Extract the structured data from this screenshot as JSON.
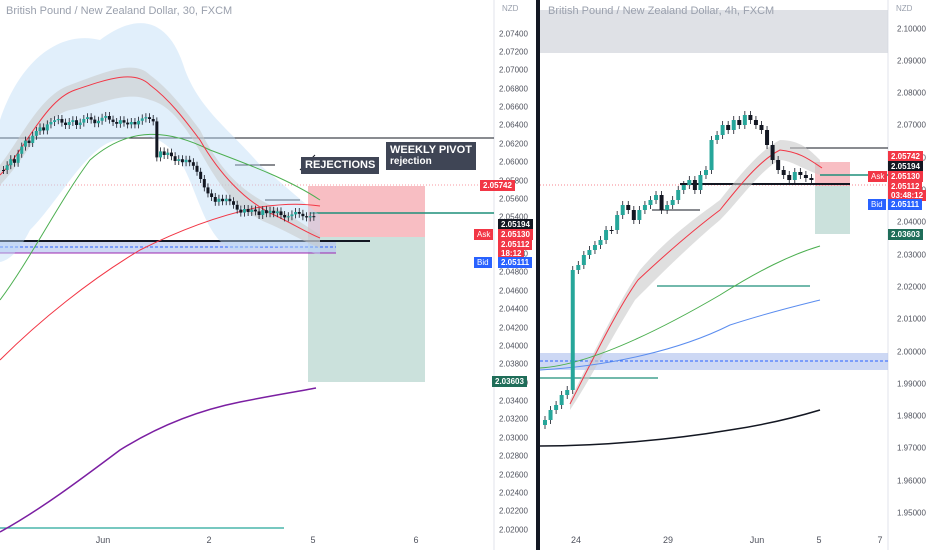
{
  "left_chart": {
    "title": "British Pound / New Zealand Dollar, 30, FXCM",
    "currency": "NZD",
    "y_ticks": [
      "2.07400",
      "2.07200",
      "2.07000",
      "2.06800",
      "2.06600",
      "2.06400",
      "2.06200",
      "2.06000",
      "2.05800",
      "2.05600",
      "2.05400",
      "2.05200",
      "2.05000",
      "2.04800",
      "2.04600",
      "2.04400",
      "2.04200",
      "2.04000",
      "2.03800",
      "2.03600",
      "2.03400",
      "2.03200",
      "2.03000",
      "2.02800",
      "2.02600",
      "2.02400",
      "2.02200",
      "2.02000"
    ],
    "x_ticks": [
      "Jun",
      "2",
      "5",
      "6"
    ],
    "price_labels": {
      "target": "2.05742",
      "level": "2.05194",
      "ask": "2.05130",
      "countdown": "18:12",
      "bid_price": "2.05112",
      "bid": "2.05111",
      "stop": "2.03603"
    },
    "ask_text": "Ask",
    "bid_text": "Bid",
    "annotation_rejections": "REJECTIONS",
    "annotation_weekly_line1": "WEEKLY PIVOT",
    "annotation_weekly_line2": "rejection"
  },
  "right_chart": {
    "title": "British Pound / New Zealand Dollar, 4h, FXCM",
    "currency": "NZD",
    "y_ticks": [
      "2.10000",
      "2.09000",
      "2.08000",
      "2.07000",
      "2.06000",
      "2.05000",
      "2.04000",
      "2.03000",
      "2.02000",
      "2.01000",
      "2.00000",
      "1.99000",
      "1.98000",
      "1.97000",
      "1.96000",
      "1.95000"
    ],
    "x_ticks": [
      "24",
      "29",
      "Jun",
      "5",
      "7"
    ],
    "price_labels": {
      "target": "2.05742",
      "level": "2.05194",
      "ask": "2.05130",
      "bid_price": "2.05112",
      "countdown": "03:48:12",
      "bid": "2.05111",
      "stop": "2.03603"
    },
    "ask_text": "Ask",
    "bid_text": "Bid"
  },
  "colors": {
    "bull": "#26a69a",
    "bear": "#131722",
    "red": "#f23645",
    "blue": "#2962ff",
    "green_label": "#1f6d59",
    "target_zone": "#f7b3b8",
    "stop_zone": "#c2dcd6"
  }
}
